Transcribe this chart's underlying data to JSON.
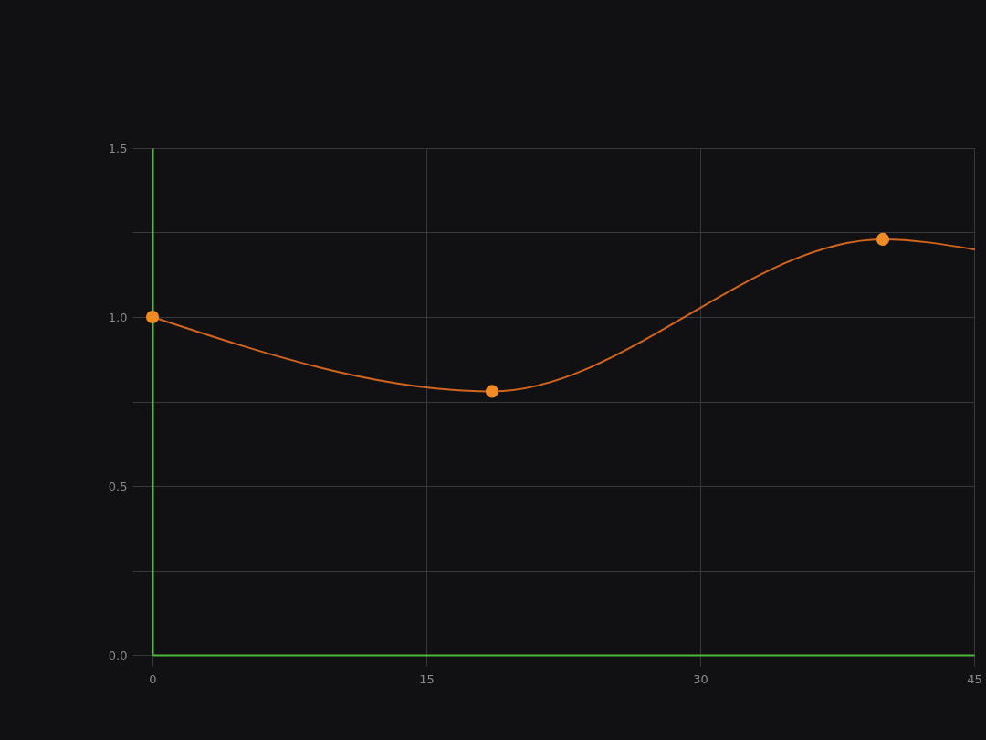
{
  "chart_data": {
    "type": "line",
    "x": [
      0,
      18.6,
      40
    ],
    "series": [
      {
        "color": "#d2651e",
        "x": [
          0,
          18.6,
          40,
          45
        ],
        "values": [
          1.0,
          0.78,
          1.23,
          1.2
        ],
        "marker": "none"
      },
      {
        "type": "scatter",
        "color": "#f08a24",
        "values": [
          1.0,
          0.78,
          1.23
        ]
      }
    ],
    "xlim": [
      0,
      45
    ],
    "ylim": [
      0,
      1.5
    ],
    "xticks": [
      0,
      15,
      30,
      45
    ],
    "yticks": [
      {
        "value": 0,
        "label": "0.0"
      },
      {
        "value": 0.25,
        "label": null
      },
      0.5,
      {
        "value": 0.75,
        "label": null
      },
      {
        "value": 1,
        "label": "1.0"
      },
      {
        "value": 1.25,
        "label": null
      },
      1.5
    ],
    "grid": true,
    "marker": "circle",
    "line_style": "solid"
  }
}
